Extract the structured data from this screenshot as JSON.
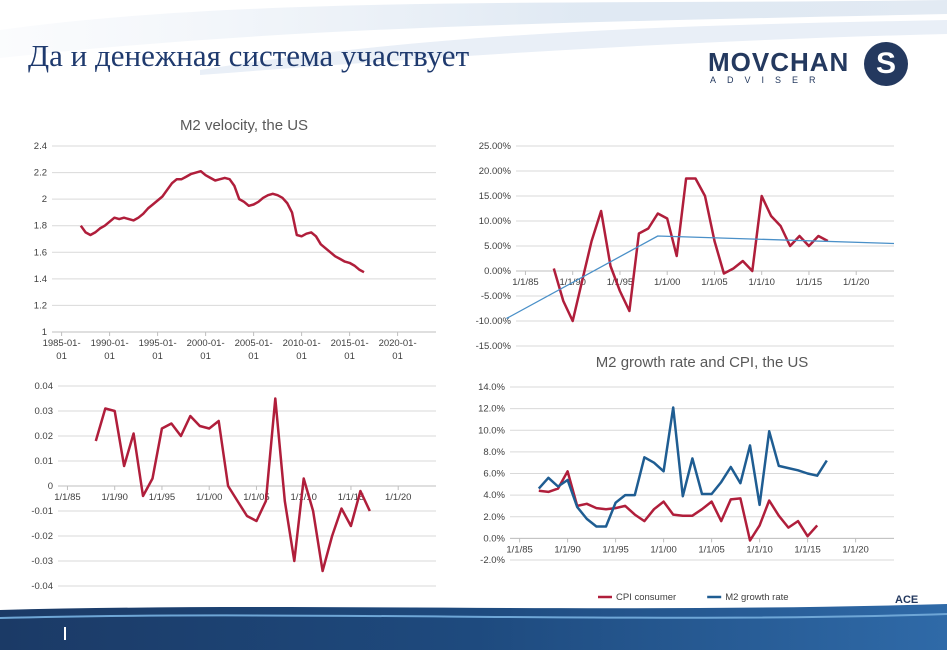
{
  "slide": {
    "title": "Да и денежная система участвует",
    "logo": {
      "word": "MOVCHAN",
      "sub": "ADVISER",
      "mark": "S"
    },
    "corner_fragment": "ACE"
  },
  "colors": {
    "red": "#B01E3B",
    "blue": "#1F5D92",
    "light_blue": "#4A90C8",
    "navy": "#24395F",
    "grid": "#D9D9D9"
  },
  "chart_data": [
    {
      "type": "line",
      "title": "M2 velocity, the US",
      "ylim": [
        1,
        2.4
      ],
      "y_ticks": [
        "1",
        "1.2",
        "1.4",
        "1.6",
        "1.8",
        "2",
        "2.2",
        "2.4"
      ],
      "x_range": [
        1984,
        2024
      ],
      "x_ticks": [
        {
          "x": 1985,
          "label": [
            "1985-01-",
            "01"
          ]
        },
        {
          "x": 1990,
          "label": [
            "1990-01-",
            "01"
          ]
        },
        {
          "x": 1995,
          "label": [
            "1995-01-",
            "01"
          ]
        },
        {
          "x": 2000,
          "label": [
            "2000-01-",
            "01"
          ]
        },
        {
          "x": 2005,
          "label": [
            "2005-01-",
            "01"
          ]
        },
        {
          "x": 2010,
          "label": [
            "2010-01-",
            "01"
          ]
        },
        {
          "x": 2015,
          "label": [
            "2015-01-",
            "01"
          ]
        },
        {
          "x": 2020,
          "label": [
            "2020-01-",
            "01"
          ]
        }
      ],
      "grid": true,
      "series": [
        {
          "color": "#B01E3B",
          "x": [
            1987.0,
            1987.5,
            1988.0,
            1988.5,
            1989.0,
            1989.5,
            1990.0,
            1990.5,
            1991.0,
            1991.5,
            1992.0,
            1992.5,
            1993.0,
            1993.5,
            1994.0,
            1994.5,
            1995.0,
            1995.5,
            1996.0,
            1996.5,
            1997.0,
            1997.5,
            1998.0,
            1998.5,
            1999.0,
            1999.5,
            2000.0,
            2000.5,
            2001.0,
            2001.5,
            2002.0,
            2002.5,
            2003.0,
            2003.5,
            2004.0,
            2004.5,
            2005.0,
            2005.5,
            2006.0,
            2006.5,
            2007.0,
            2007.5,
            2008.0,
            2008.5,
            2009.0,
            2009.5,
            2010.0,
            2010.5,
            2011.0,
            2011.5,
            2012.0,
            2012.5,
            2013.0,
            2013.5,
            2014.0,
            2014.5,
            2015.0,
            2015.5,
            2016.0,
            2016.5
          ],
          "y": [
            1.8,
            1.75,
            1.73,
            1.75,
            1.78,
            1.8,
            1.83,
            1.86,
            1.85,
            1.86,
            1.85,
            1.84,
            1.86,
            1.89,
            1.93,
            1.96,
            1.99,
            2.02,
            2.07,
            2.12,
            2.15,
            2.15,
            2.17,
            2.19,
            2.2,
            2.21,
            2.18,
            2.16,
            2.14,
            2.15,
            2.16,
            2.15,
            2.1,
            2.0,
            1.98,
            1.95,
            1.96,
            1.98,
            2.01,
            2.03,
            2.04,
            2.03,
            2.01,
            1.97,
            1.9,
            1.73,
            1.72,
            1.74,
            1.75,
            1.72,
            1.66,
            1.63,
            1.6,
            1.57,
            1.55,
            1.53,
            1.52,
            1.5,
            1.47,
            1.45
          ]
        }
      ]
    },
    {
      "type": "line",
      "ylim": [
        -15,
        25
      ],
      "y_ticks": [
        "25.00%",
        "20.00%",
        "15.00%",
        "10.00%",
        "5.00%",
        "0.00%",
        "-5.00%",
        "-10.00%",
        "-15.00%"
      ],
      "x_range": [
        1984,
        2024
      ],
      "x_ticks": [
        {
          "x": 1985,
          "label": "1/1/85"
        },
        {
          "x": 1990,
          "label": "1/1/90"
        },
        {
          "x": 1995,
          "label": "1/1/95"
        },
        {
          "x": 2000,
          "label": "1/1/00"
        },
        {
          "x": 2005,
          "label": "1/1/05"
        },
        {
          "x": 2010,
          "label": "1/1/10"
        },
        {
          "x": 2015,
          "label": "1/1/15"
        },
        {
          "x": 2020,
          "label": "1/1/20"
        }
      ],
      "grid": true,
      "series": [
        {
          "color": "#B01E3B",
          "x": [
            1988,
            1989,
            1990,
            1991,
            1992,
            1993,
            1994,
            1995,
            1996,
            1997,
            1998,
            1999,
            2000,
            2001,
            2002,
            2003,
            2004,
            2005,
            2006,
            2007,
            2008,
            2009,
            2010,
            2011,
            2012,
            2013,
            2014,
            2015,
            2016,
            2017
          ],
          "y": [
            0.5,
            -6,
            -10,
            -2,
            6,
            12,
            1,
            -4,
            -8,
            7.5,
            8.5,
            11.5,
            10.5,
            3,
            18.5,
            18.5,
            15,
            6,
            -0.5,
            0.5,
            2,
            0,
            15,
            11,
            9,
            5,
            7,
            5,
            7,
            6
          ]
        },
        {
          "color": "#4A90C8",
          "x": [
            1983,
            1999,
            2024
          ],
          "y": [
            -9.5,
            7,
            5.5
          ]
        }
      ]
    },
    {
      "type": "line",
      "ylim": [
        -0.04,
        0.04
      ],
      "y_ticks": [
        "0.04",
        "0.03",
        "0.02",
        "0.01",
        "0",
        "-0.01",
        "-0.02",
        "-0.03",
        "-0.04"
      ],
      "x_range": [
        1984,
        2024
      ],
      "x_ticks": [
        {
          "x": 1985,
          "label": "1/1/85"
        },
        {
          "x": 1990,
          "label": "1/1/90"
        },
        {
          "x": 1995,
          "label": "1/1/95"
        },
        {
          "x": 2000,
          "label": "1/1/00"
        },
        {
          "x": 2005,
          "label": "1/1/05"
        },
        {
          "x": 2010,
          "label": "1/1/10"
        },
        {
          "x": 2015,
          "label": "1/1/15"
        },
        {
          "x": 2020,
          "label": "1/1/20"
        }
      ],
      "grid": true,
      "series": [
        {
          "color": "#B01E3B",
          "x": [
            1988,
            1989,
            1990,
            1991,
            1992,
            1993,
            1994,
            1995,
            1996,
            1997,
            1998,
            1999,
            2000,
            2001,
            2002,
            2003,
            2004,
            2005,
            2006,
            2007,
            2008,
            2009,
            2010,
            2011,
            2012,
            2013,
            2014,
            2015,
            2016,
            2017
          ],
          "y": [
            0.018,
            0.031,
            0.03,
            0.008,
            0.021,
            -0.004,
            0.003,
            0.023,
            0.025,
            0.02,
            0.028,
            0.024,
            0.023,
            0.026,
            0.0,
            -0.006,
            -0.012,
            -0.014,
            -0.006,
            0.035,
            -0.006,
            -0.03,
            0.003,
            -0.01,
            -0.034,
            -0.02,
            -0.009,
            -0.016,
            -0.002,
            -0.01
          ]
        }
      ]
    },
    {
      "type": "line",
      "title": "M2 growth rate and CPI, the US",
      "ylim": [
        -2,
        14
      ],
      "y_ticks": [
        "14.0%",
        "12.0%",
        "10.0%",
        "8.0%",
        "6.0%",
        "4.0%",
        "2.0%",
        "0.0%",
        "-2.0%"
      ],
      "x_range": [
        1984,
        2024
      ],
      "x_ticks": [
        {
          "x": 1985,
          "label": "1/1/85"
        },
        {
          "x": 1990,
          "label": "1/1/90"
        },
        {
          "x": 1995,
          "label": "1/1/95"
        },
        {
          "x": 2000,
          "label": "1/1/00"
        },
        {
          "x": 2005,
          "label": "1/1/05"
        },
        {
          "x": 2010,
          "label": "1/1/10"
        },
        {
          "x": 2015,
          "label": "1/1/15"
        },
        {
          "x": 2020,
          "label": "1/1/20"
        }
      ],
      "grid": true,
      "legend": "bottom",
      "series": [
        {
          "name": "CPI consumer",
          "color": "#B01E3B",
          "x": [
            1987,
            1988,
            1989,
            1990,
            1991,
            1992,
            1993,
            1994,
            1995,
            1996,
            1997,
            1998,
            1999,
            2000,
            2001,
            2002,
            2003,
            2004,
            2005,
            2006,
            2007,
            2008,
            2009,
            2010,
            2011,
            2012,
            2013,
            2014,
            2015,
            2016,
            2017
          ],
          "y": [
            4.4,
            4.3,
            4.6,
            6.2,
            3.0,
            3.2,
            2.8,
            2.7,
            2.8,
            3.0,
            2.2,
            1.6,
            2.7,
            3.4,
            2.2,
            2.1,
            2.1,
            2.7,
            3.4,
            1.6,
            3.6,
            3.7,
            -0.2,
            1.2,
            3.5,
            2.1,
            1.0,
            1.6,
            0.2,
            1.2,
            null
          ]
        },
        {
          "name": "M2 growth rate",
          "color": "#1F5D92",
          "x": [
            1987,
            1988,
            1989,
            1990,
            1991,
            1992,
            1993,
            1994,
            1995,
            1996,
            1997,
            1998,
            1999,
            2000,
            2001,
            2002,
            2003,
            2004,
            2005,
            2006,
            2007,
            2008,
            2009,
            2010,
            2011,
            2012,
            2013,
            2014,
            2015,
            2016,
            2017
          ],
          "y": [
            4.6,
            5.6,
            4.8,
            5.4,
            2.9,
            1.8,
            1.1,
            1.1,
            3.3,
            4.0,
            4.0,
            7.5,
            7.0,
            6.2,
            12.1,
            3.9,
            7.4,
            4.1,
            4.1,
            5.2,
            6.6,
            5.1,
            8.6,
            3.1,
            9.9,
            6.7,
            6.5,
            6.3,
            6.0,
            5.8,
            7.2
          ]
        }
      ]
    }
  ]
}
